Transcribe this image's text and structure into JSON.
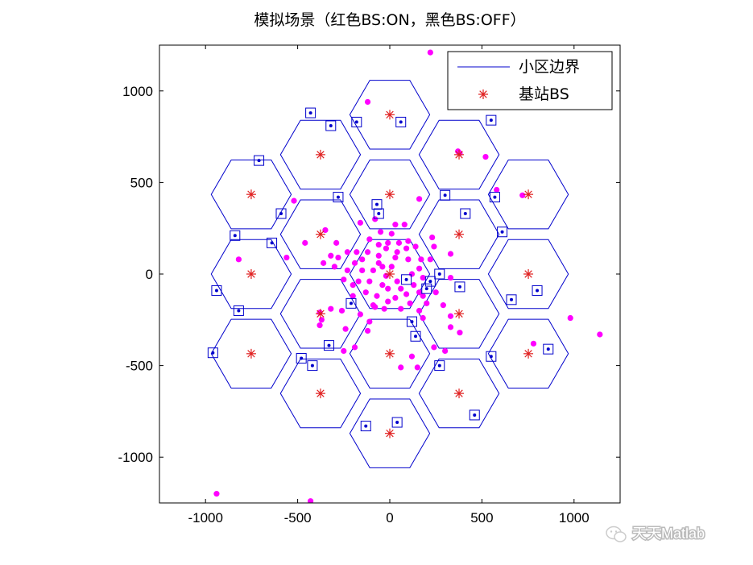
{
  "chart_data": {
    "type": "scatter",
    "title": "模拟场景（红色BS:ON，黑色BS:OFF）",
    "xlim": [
      -1250,
      1250
    ],
    "ylim": [
      -1250,
      1250
    ],
    "xticks": [
      -1000,
      -500,
      0,
      500,
      1000
    ],
    "yticks": [
      -1000,
      -500,
      0,
      500,
      1000
    ],
    "hex_radius": 217,
    "grid": false,
    "legend_placement": "top-right",
    "legend": [
      {
        "label": "小区边界",
        "marker": "line",
        "color": "#0000cc"
      },
      {
        "label": "基站BS",
        "marker": "asterisk",
        "color": "#e02020"
      }
    ],
    "colors": {
      "cell_boundary": "#0000cc",
      "base_station": "#e02020",
      "user": "#ff00ff",
      "selected_user": "#0000cc"
    },
    "base_stations": [
      [
        0,
        0
      ],
      [
        0,
        435
      ],
      [
        0,
        870
      ],
      [
        376,
        217
      ],
      [
        376,
        652
      ],
      [
        752,
        435
      ],
      [
        376,
        -217
      ],
      [
        752,
        0
      ],
      [
        752,
        -435
      ],
      [
        0,
        -435
      ],
      [
        0,
        -870
      ],
      [
        376,
        -652
      ],
      [
        -376,
        -217
      ],
      [
        -376,
        -652
      ],
      [
        -752,
        -435
      ],
      [
        -376,
        217
      ],
      [
        -752,
        0
      ],
      [
        -752,
        435
      ],
      [
        -376,
        652
      ]
    ],
    "selected_users": [
      [
        -430,
        880
      ],
      [
        -320,
        810
      ],
      [
        -180,
        830
      ],
      [
        60,
        830
      ],
      [
        -710,
        620
      ],
      [
        -280,
        420
      ],
      [
        -70,
        380
      ],
      [
        -60,
        330
      ],
      [
        -590,
        330
      ],
      [
        -840,
        210
      ],
      [
        -640,
        170
      ],
      [
        300,
        430
      ],
      [
        410,
        330
      ],
      [
        570,
        420
      ],
      [
        550,
        840
      ],
      [
        610,
        230
      ],
      [
        -940,
        -90
      ],
      [
        -820,
        -200
      ],
      [
        -210,
        -160
      ],
      [
        120,
        -260
      ],
      [
        140,
        -340
      ],
      [
        90,
        -30
      ],
      [
        220,
        -40
      ],
      [
        270,
        0
      ],
      [
        200,
        -80
      ],
      [
        380,
        -70
      ],
      [
        660,
        -140
      ],
      [
        800,
        -90
      ],
      [
        -330,
        -390
      ],
      [
        -480,
        -460
      ],
      [
        -420,
        -500
      ],
      [
        -960,
        -430
      ],
      [
        270,
        -500
      ],
      [
        550,
        -450
      ],
      [
        860,
        -410
      ],
      [
        460,
        -770
      ],
      [
        40,
        -810
      ],
      [
        -130,
        -830
      ]
    ],
    "users": [
      [
        220,
        1210
      ],
      [
        -120,
        940
      ],
      [
        370,
        670
      ],
      [
        380,
        660
      ],
      [
        520,
        640
      ],
      [
        580,
        460
      ],
      [
        720,
        430
      ],
      [
        -520,
        400
      ],
      [
        160,
        410
      ],
      [
        -560,
        90
      ],
      [
        -460,
        170
      ],
      [
        -820,
        80
      ],
      [
        -360,
        60
      ],
      [
        -290,
        170
      ],
      [
        -350,
        240
      ],
      [
        -320,
        -190
      ],
      [
        -380,
        -210
      ],
      [
        -370,
        -250
      ],
      [
        -380,
        -280
      ],
      [
        -240,
        -300
      ],
      [
        -260,
        -200
      ],
      [
        -110,
        -260
      ],
      [
        -120,
        -310
      ],
      [
        -190,
        -400
      ],
      [
        -250,
        -420
      ],
      [
        -160,
        -220
      ],
      [
        -200,
        -120
      ],
      [
        -80,
        -180
      ],
      [
        -30,
        -190
      ],
      [
        60,
        -190
      ],
      [
        110,
        -160
      ],
      [
        160,
        -200
      ],
      [
        180,
        -120
      ],
      [
        160,
        -100
      ],
      [
        200,
        -160
      ],
      [
        180,
        -240
      ],
      [
        250,
        -100
      ],
      [
        290,
        -170
      ],
      [
        330,
        -230
      ],
      [
        330,
        -290
      ],
      [
        380,
        -320
      ],
      [
        300,
        -420
      ],
      [
        120,
        -450
      ],
      [
        60,
        -510
      ],
      [
        150,
        -510
      ],
      [
        240,
        -400
      ],
      [
        -940,
        -1200
      ],
      [
        -430,
        -1240
      ],
      [
        980,
        -240
      ],
      [
        1140,
        -330
      ],
      [
        780,
        -380
      ],
      [
        -160,
        280
      ],
      [
        -80,
        300
      ],
      [
        -50,
        230
      ],
      [
        10,
        220
      ],
      [
        80,
        270
      ],
      [
        100,
        180
      ],
      [
        140,
        150
      ],
      [
        170,
        80
      ],
      [
        100,
        80
      ],
      [
        40,
        120
      ],
      [
        -20,
        140
      ],
      [
        -60,
        160
      ],
      [
        -120,
        120
      ],
      [
        -150,
        80
      ],
      [
        -190,
        60
      ],
      [
        -230,
        120
      ],
      [
        -280,
        90
      ],
      [
        -300,
        40
      ],
      [
        -320,
        100
      ],
      [
        -230,
        20
      ],
      [
        -170,
        -40
      ],
      [
        -130,
        -100
      ],
      [
        -70,
        -120
      ],
      [
        -10,
        -80
      ],
      [
        40,
        -40
      ],
      [
        120,
        0
      ],
      [
        180,
        -20
      ],
      [
        220,
        80
      ],
      [
        240,
        150
      ],
      [
        330,
        110
      ],
      [
        330,
        -20
      ],
      [
        -40,
        40
      ],
      [
        -90,
        20
      ],
      [
        -150,
        20
      ],
      [
        -110,
        -40
      ],
      [
        -60,
        60
      ],
      [
        10,
        40
      ],
      [
        30,
        90
      ],
      [
        -40,
        -60
      ],
      [
        -10,
        170
      ],
      [
        50,
        170
      ],
      [
        90,
        140
      ],
      [
        160,
        30
      ],
      [
        130,
        -60
      ],
      [
        -200,
        -60
      ],
      [
        -180,
        120
      ],
      [
        -110,
        190
      ],
      [
        -60,
        100
      ],
      [
        30,
        -130
      ],
      [
        90,
        -110
      ],
      [
        -20,
        -10
      ],
      [
        -90,
        -170
      ],
      [
        -250,
        -30
      ],
      [
        60,
        -80
      ],
      [
        230,
        200
      ],
      [
        -10,
        -150
      ],
      [
        30,
        270
      ]
    ]
  },
  "watermark": {
    "text": "天天Matlab",
    "icon": "wechat-icon"
  }
}
